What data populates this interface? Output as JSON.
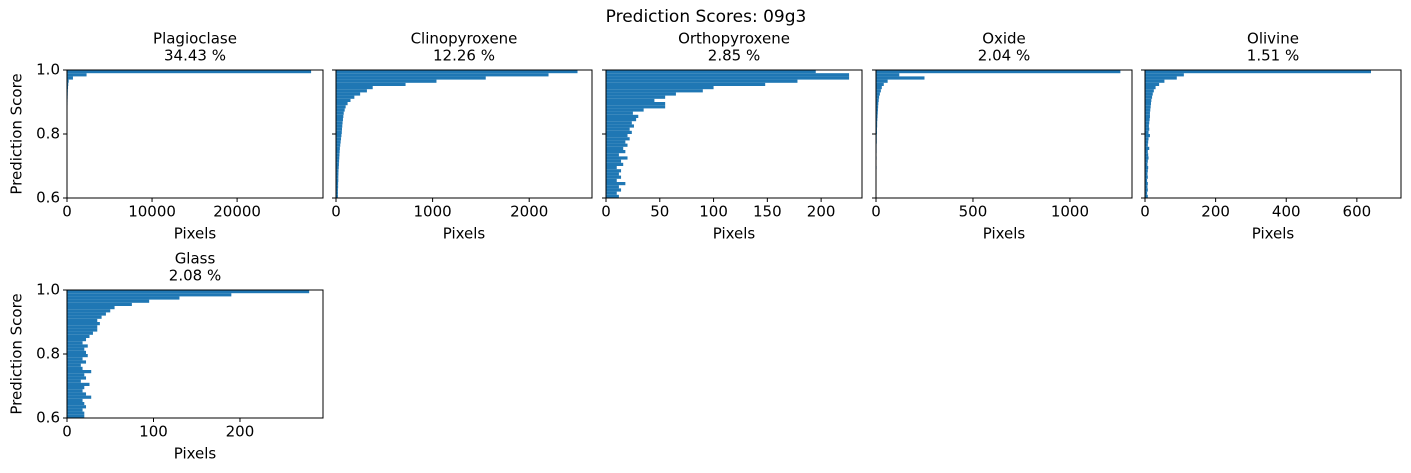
{
  "title": "Prediction Scores: 09g3",
  "chart_data": [
    {
      "type": "histogram",
      "orientation": "horizontal",
      "title": "Plagioclase",
      "subtitle": "34.43 %",
      "xlabel": "Pixels",
      "ylabel": "Prediction Score",
      "color": "#1f77b4",
      "bins": [
        0.6,
        0.61,
        0.62,
        0.63,
        0.64,
        0.65,
        0.66,
        0.67,
        0.68,
        0.69,
        0.7,
        0.71,
        0.72,
        0.73,
        0.74,
        0.75,
        0.76,
        0.77,
        0.78,
        0.79,
        0.8,
        0.81,
        0.82,
        0.83,
        0.84,
        0.85,
        0.86,
        0.87,
        0.88,
        0.89,
        0.9,
        0.91,
        0.92,
        0.93,
        0.94,
        0.95,
        0.96,
        0.97,
        0.98,
        0.99,
        1.0
      ],
      "values": [
        20,
        20,
        20,
        20,
        20,
        20,
        20,
        25,
        25,
        25,
        25,
        25,
        30,
        30,
        30,
        30,
        30,
        35,
        35,
        35,
        40,
        40,
        40,
        45,
        45,
        50,
        50,
        55,
        60,
        65,
        70,
        80,
        90,
        100,
        120,
        150,
        200,
        700,
        2300,
        28700
      ],
      "xlim": [
        0,
        30100
      ],
      "xticks": [
        0,
        10000,
        20000
      ],
      "ylim": [
        0.6,
        1.0
      ],
      "yticks": [
        0.6,
        0.8,
        {
          "value": 1.0,
          "label": "1.0"
        }
      ]
    },
    {
      "type": "histogram",
      "orientation": "horizontal",
      "title": "Clinopyroxene",
      "subtitle": "12.26 %",
      "xlabel": "Pixels",
      "color": "#1f77b4",
      "bins": [
        0.6,
        0.61,
        0.62,
        0.63,
        0.64,
        0.65,
        0.66,
        0.67,
        0.68,
        0.69,
        0.7,
        0.71,
        0.72,
        0.73,
        0.74,
        0.75,
        0.76,
        0.77,
        0.78,
        0.79,
        0.8,
        0.81,
        0.82,
        0.83,
        0.84,
        0.85,
        0.86,
        0.87,
        0.88,
        0.89,
        0.9,
        0.91,
        0.92,
        0.93,
        0.94,
        0.95,
        0.96,
        0.97,
        0.98,
        0.99,
        1.0
      ],
      "values": [
        20,
        20,
        20,
        22,
        22,
        24,
        24,
        25,
        26,
        28,
        30,
        32,
        34,
        36,
        38,
        40,
        44,
        48,
        52,
        56,
        60,
        62,
        65,
        68,
        72,
        76,
        80,
        90,
        100,
        120,
        150,
        190,
        250,
        320,
        380,
        720,
        1040,
        1550,
        2200,
        2500
      ],
      "xlim": [
        0,
        2650
      ],
      "xticks": [
        0,
        1000,
        2000
      ],
      "ylim": [
        0.6,
        1.0
      ],
      "yticks": [
        0.6,
        0.8,
        1.0
      ],
      "ytick_labels": false
    },
    {
      "type": "histogram",
      "orientation": "horizontal",
      "title": "Orthopyroxene",
      "subtitle": "2.85 %",
      "xlabel": "Pixels",
      "color": "#1f77b4",
      "bins": [
        0.6,
        0.61,
        0.62,
        0.63,
        0.64,
        0.65,
        0.66,
        0.67,
        0.68,
        0.69,
        0.7,
        0.71,
        0.72,
        0.73,
        0.74,
        0.75,
        0.76,
        0.77,
        0.78,
        0.79,
        0.8,
        0.81,
        0.82,
        0.83,
        0.84,
        0.85,
        0.86,
        0.87,
        0.88,
        0.89,
        0.9,
        0.91,
        0.92,
        0.93,
        0.94,
        0.95,
        0.96,
        0.97,
        0.98,
        0.99,
        1.0
      ],
      "values": [
        12,
        10,
        14,
        12,
        18,
        10,
        14,
        12,
        14,
        10,
        16,
        14,
        20,
        12,
        18,
        16,
        20,
        18,
        22,
        20,
        24,
        22,
        26,
        24,
        28,
        30,
        25,
        35,
        55,
        55,
        45,
        55,
        65,
        90,
        100,
        148,
        178,
        226,
        226,
        195
      ],
      "xlim": [
        0,
        238
      ],
      "xticks": [
        0,
        50,
        100,
        150,
        200
      ],
      "ylim": [
        0.6,
        1.0
      ],
      "yticks": [
        0.6,
        0.8,
        1.0
      ],
      "ytick_labels": false
    },
    {
      "type": "histogram",
      "orientation": "horizontal",
      "title": "Oxide",
      "subtitle": "2.04 %",
      "xlabel": "Pixels",
      "color": "#1f77b4",
      "bins": [
        0.6,
        0.61,
        0.62,
        0.63,
        0.64,
        0.65,
        0.66,
        0.67,
        0.68,
        0.69,
        0.7,
        0.71,
        0.72,
        0.73,
        0.74,
        0.75,
        0.76,
        0.77,
        0.78,
        0.79,
        0.8,
        0.81,
        0.82,
        0.83,
        0.84,
        0.85,
        0.86,
        0.87,
        0.88,
        0.89,
        0.9,
        0.91,
        0.92,
        0.93,
        0.94,
        0.95,
        0.96,
        0.97,
        0.98,
        0.99,
        1.0
      ],
      "values": [
        2,
        1,
        2,
        1,
        2,
        2,
        1,
        2,
        2,
        3,
        2,
        2,
        3,
        2,
        3,
        3,
        3,
        4,
        4,
        4,
        5,
        5,
        6,
        6,
        7,
        8,
        9,
        10,
        11,
        12,
        14,
        16,
        20,
        25,
        30,
        40,
        60,
        250,
        120,
        1260
      ],
      "xlim": [
        0,
        1320
      ],
      "xticks": [
        0,
        500,
        1000
      ],
      "ylim": [
        0.6,
        1.0
      ],
      "yticks": [
        0.6,
        0.8,
        1.0
      ],
      "ytick_labels": false
    },
    {
      "type": "histogram",
      "orientation": "horizontal",
      "title": "Olivine",
      "subtitle": "1.51 %",
      "xlabel": "Pixels",
      "color": "#1f77b4",
      "bins": [
        0.6,
        0.61,
        0.62,
        0.63,
        0.64,
        0.65,
        0.66,
        0.67,
        0.68,
        0.69,
        0.7,
        0.71,
        0.72,
        0.73,
        0.74,
        0.75,
        0.76,
        0.77,
        0.78,
        0.79,
        0.8,
        0.81,
        0.82,
        0.83,
        0.84,
        0.85,
        0.86,
        0.87,
        0.88,
        0.89,
        0.9,
        0.91,
        0.92,
        0.93,
        0.94,
        0.95,
        0.96,
        0.97,
        0.98,
        0.99,
        1.0
      ],
      "values": [
        8,
        6,
        8,
        7,
        8,
        6,
        8,
        7,
        8,
        9,
        7,
        8,
        10,
        9,
        8,
        12,
        8,
        9,
        10,
        14,
        10,
        12,
        11,
        12,
        13,
        14,
        14,
        15,
        16,
        17,
        18,
        20,
        22,
        25,
        30,
        40,
        55,
        90,
        110,
        640
      ],
      "xlim": [
        0,
        725
      ],
      "xticks": [
        0,
        200,
        400,
        600
      ],
      "ylim": [
        0.6,
        1.0
      ],
      "yticks": [
        0.6,
        0.8,
        1.0
      ],
      "ytick_labels": false
    },
    {
      "type": "histogram",
      "orientation": "horizontal",
      "title": "Glass",
      "subtitle": "2.08 %",
      "xlabel": "Pixels",
      "ylabel": "Prediction Score",
      "color": "#1f77b4",
      "bins": [
        0.6,
        0.61,
        0.62,
        0.63,
        0.64,
        0.65,
        0.66,
        0.67,
        0.68,
        0.69,
        0.7,
        0.71,
        0.72,
        0.73,
        0.74,
        0.75,
        0.76,
        0.77,
        0.78,
        0.79,
        0.8,
        0.81,
        0.82,
        0.83,
        0.84,
        0.85,
        0.86,
        0.87,
        0.88,
        0.89,
        0.9,
        0.91,
        0.92,
        0.93,
        0.94,
        0.95,
        0.96,
        0.97,
        0.98,
        0.99,
        1.0
      ],
      "values": [
        20,
        20,
        18,
        22,
        20,
        18,
        28,
        22,
        18,
        20,
        26,
        16,
        22,
        20,
        28,
        18,
        16,
        22,
        18,
        24,
        22,
        20,
        24,
        18,
        22,
        26,
        30,
        35,
        35,
        38,
        35,
        40,
        45,
        50,
        55,
        75,
        95,
        130,
        190,
        280
      ],
      "xlim": [
        0,
        296
      ],
      "xticks": [
        0,
        100,
        200
      ],
      "ylim": [
        0.6,
        1.0
      ],
      "yticks": [
        0.6,
        0.8,
        {
          "value": 1.0,
          "label": "1.0"
        }
      ]
    }
  ]
}
